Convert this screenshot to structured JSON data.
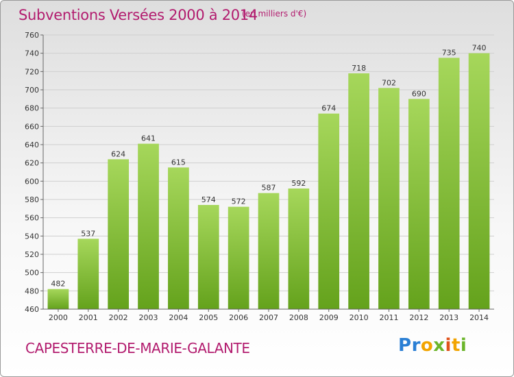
{
  "header": {
    "title": "Subventions Versées 2000 à 2014",
    "subtitle": "(en milliers d'€)"
  },
  "footer": {
    "commune": "CAPESTERRE-DE-MARIE-GALANTE",
    "logo_text": "Proxiti"
  },
  "colors": {
    "bar_light": "#a6d75b",
    "bar_dark": "#64a21c",
    "title": "#b21b6e"
  },
  "chart_data": {
    "type": "bar",
    "title": "Subventions Versées 2000 à 2014",
    "subtitle": "(en milliers d'€)",
    "xlabel": "",
    "ylabel": "",
    "categories": [
      "2000",
      "2001",
      "2002",
      "2003",
      "2004",
      "2005",
      "2006",
      "2007",
      "2008",
      "2009",
      "2010",
      "2011",
      "2012",
      "2013",
      "2014"
    ],
    "values": [
      482,
      537,
      624,
      641,
      615,
      574,
      572,
      587,
      592,
      674,
      718,
      702,
      690,
      735,
      740
    ],
    "ylim": [
      460,
      760
    ],
    "yticks": [
      460,
      480,
      500,
      520,
      540,
      560,
      580,
      600,
      620,
      640,
      660,
      680,
      700,
      720,
      740,
      760
    ],
    "grid": true,
    "legend": "none"
  }
}
